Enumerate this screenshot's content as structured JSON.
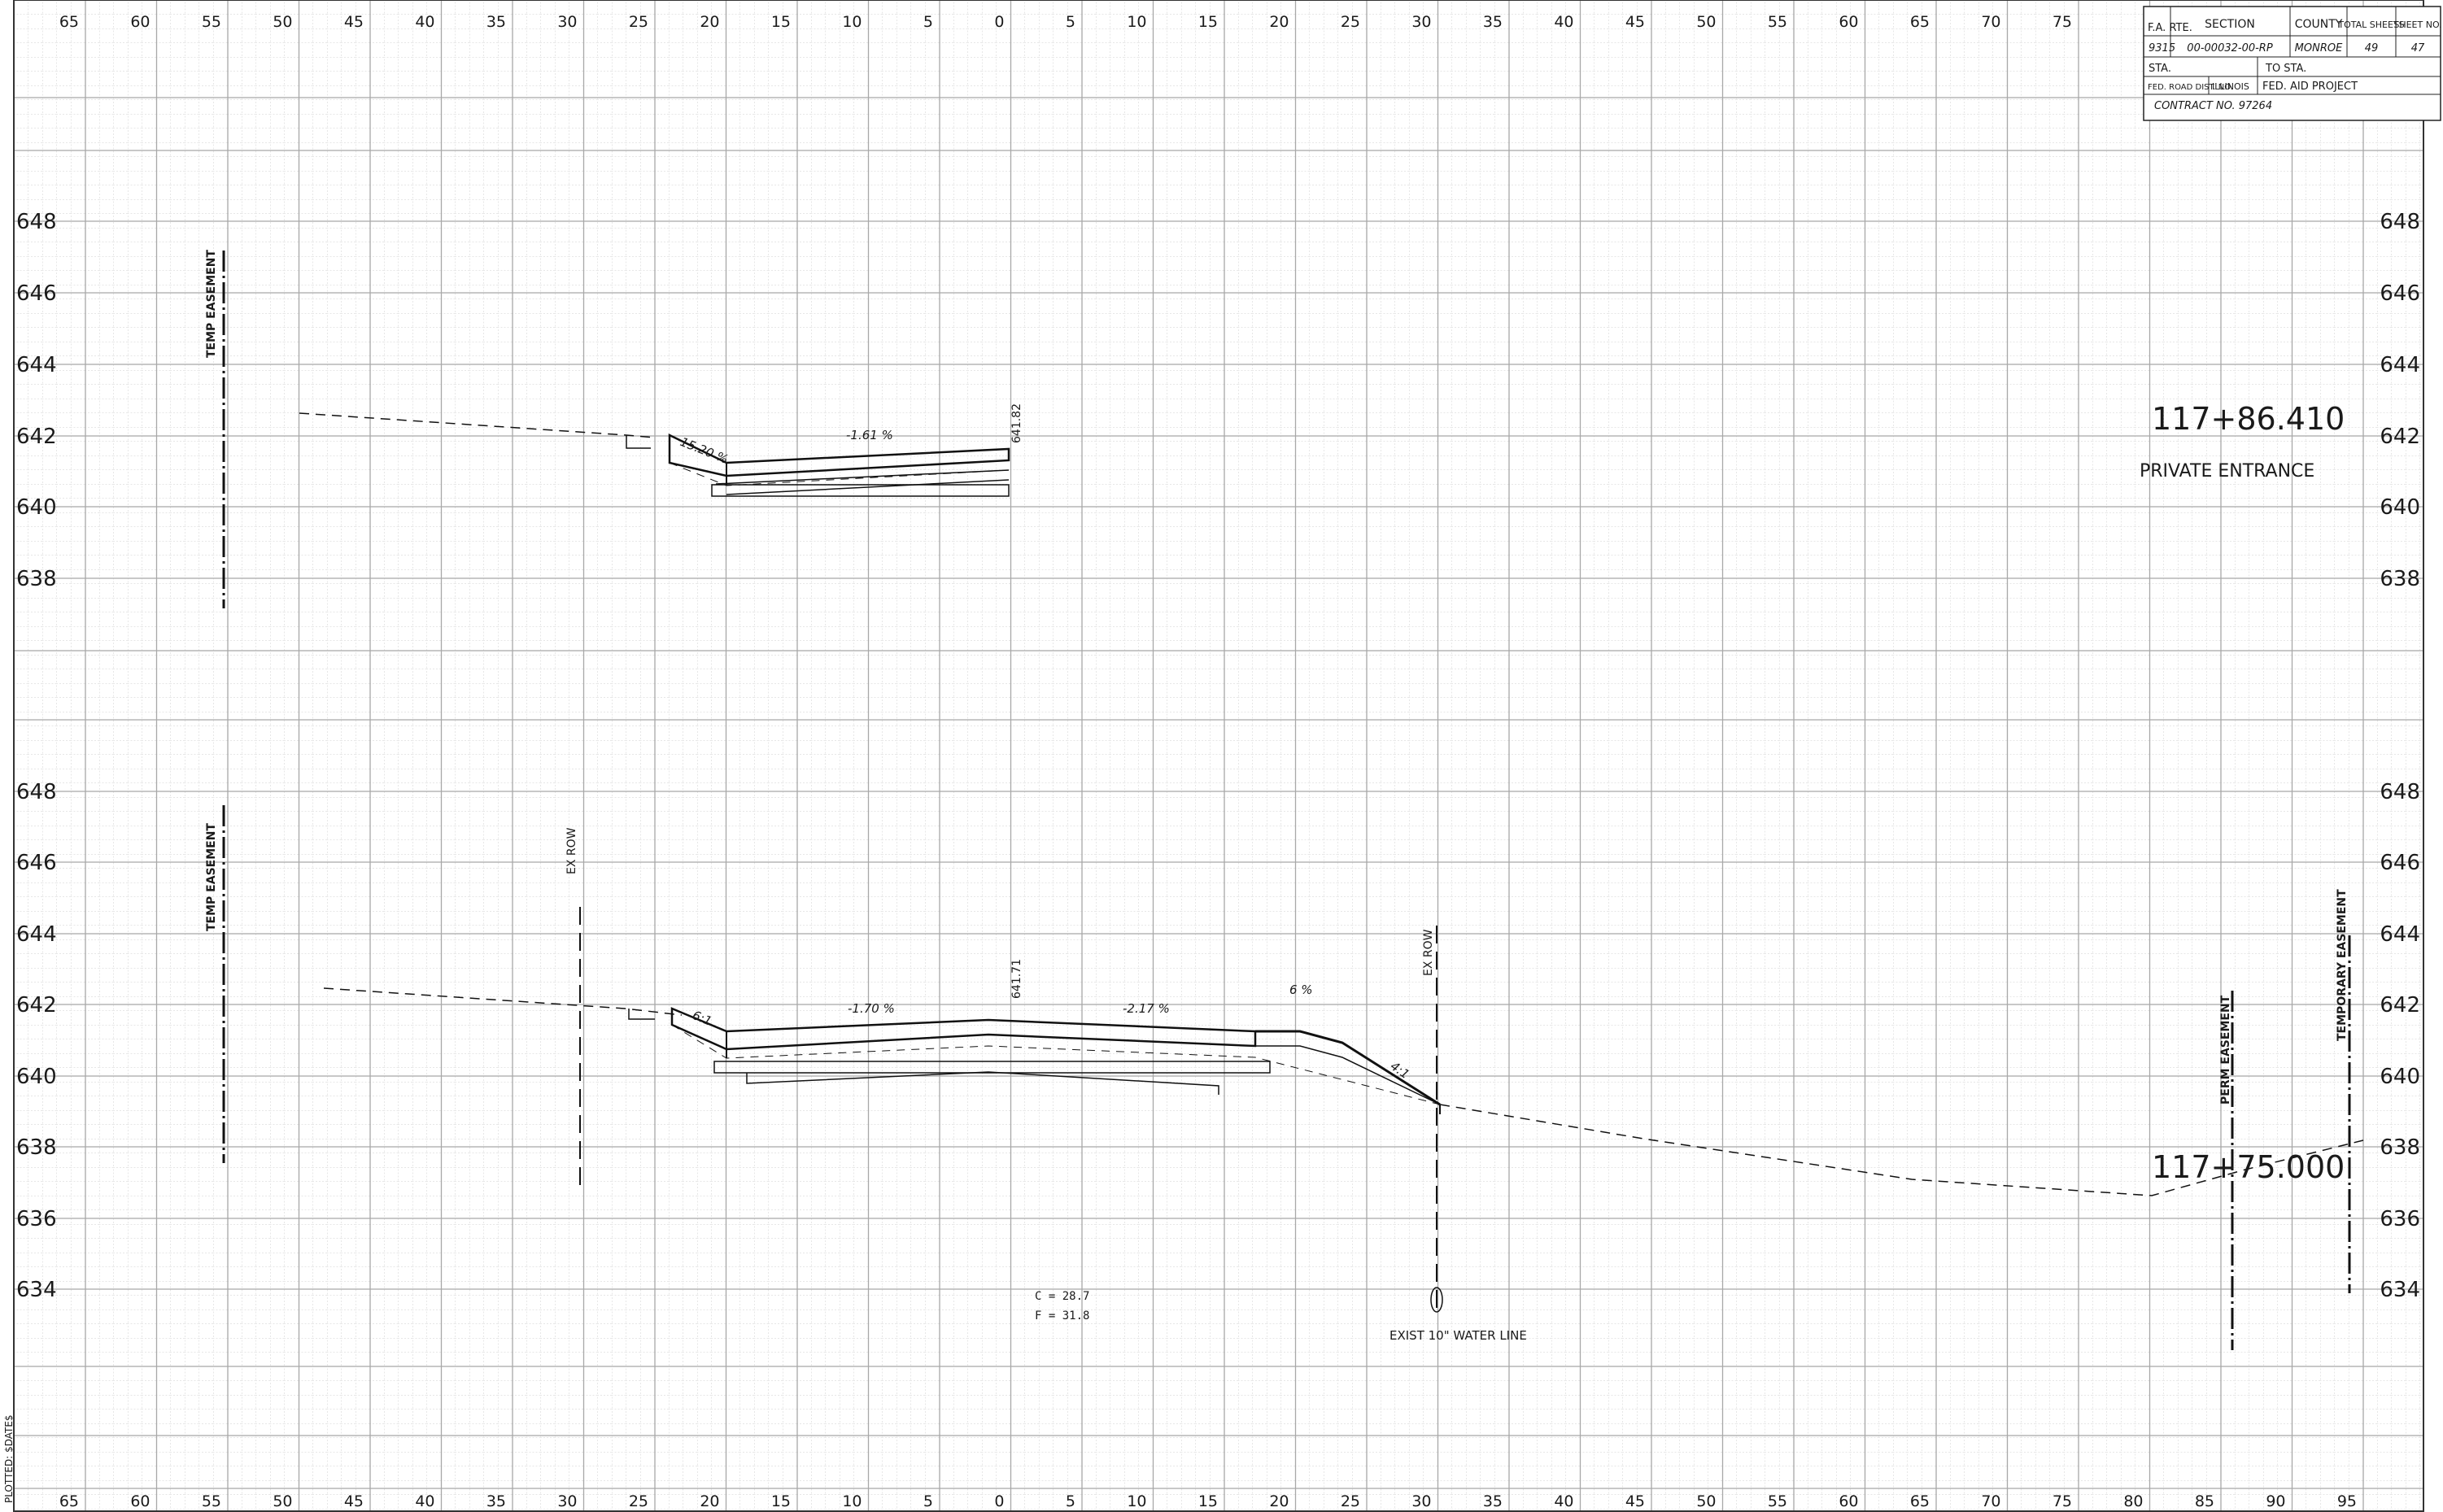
{
  "title_block": {
    "headers": {
      "fa_rte": "F.A. RTE.",
      "section": "SECTION",
      "county": "COUNTY",
      "total_sheets": "TOTAL SHEETS",
      "sheet_no": "SHEET NO."
    },
    "values": {
      "fa_rte": "9315",
      "section": "00-00032-00-RP",
      "county": "MONROE",
      "total_sheets": "49",
      "sheet_no": "47"
    },
    "sta": "STA.",
    "to_sta": "TO STA.",
    "fed_road_dist": "FED. ROAD DIST. NO.",
    "state": "ILLINOIS",
    "fed_aid_project": "FED. AID PROJECT",
    "contract": "CONTRACT NO. 97264"
  },
  "offset_labels_top": [
    "65",
    "60",
    "55",
    "50",
    "45",
    "40",
    "35",
    "30",
    "25",
    "20",
    "15",
    "10",
    "5",
    "0",
    "5",
    "10",
    "15",
    "20",
    "25",
    "30",
    "35",
    "40",
    "45",
    "50",
    "55",
    "60",
    "65",
    "70",
    "75"
  ],
  "offset_labels_bottom": [
    "65",
    "60",
    "55",
    "50",
    "45",
    "40",
    "35",
    "30",
    "25",
    "20",
    "15",
    "10",
    "5",
    "0",
    "5",
    "10",
    "15",
    "20",
    "25",
    "30",
    "35",
    "40",
    "45",
    "50",
    "55",
    "60",
    "65",
    "70",
    "75",
    "80",
    "85",
    "90",
    "95"
  ],
  "upper_section": {
    "station": "117+86.410",
    "description": "PRIVATE ENTRANCE",
    "elev_labels": [
      "648",
      "646",
      "644",
      "642",
      "640",
      "638"
    ],
    "annotations": {
      "temp_easement": "TEMP EASEMENT",
      "slope_left": "15.20 %",
      "slope_main": "-1.61 %",
      "cl_elev": "641.82"
    }
  },
  "lower_section": {
    "station": "117+75.000",
    "elev_labels": [
      "648",
      "646",
      "644",
      "642",
      "640",
      "638",
      "636",
      "634"
    ],
    "annotations": {
      "temp_easement": "TEMP EASEMENT",
      "ex_row_left": "EX ROW",
      "ex_row_right": "EX ROW",
      "slope_61": "6:1",
      "slope_left": "-1.70 %",
      "cl_elev": "641.71",
      "slope_right": "-2.17 %",
      "slope_6pct": "6 %",
      "slope_41": "4:1",
      "perm_easement": "PERM EASEMENT",
      "temporary_easement": "TEMPORARY EASEMENT",
      "cut": "C = 28.7",
      "fill": "F = 31.8",
      "water_line": "EXIST 10\" WATER LINE"
    }
  },
  "margin": {
    "plotted": "PLOTTED: $DATE$"
  }
}
